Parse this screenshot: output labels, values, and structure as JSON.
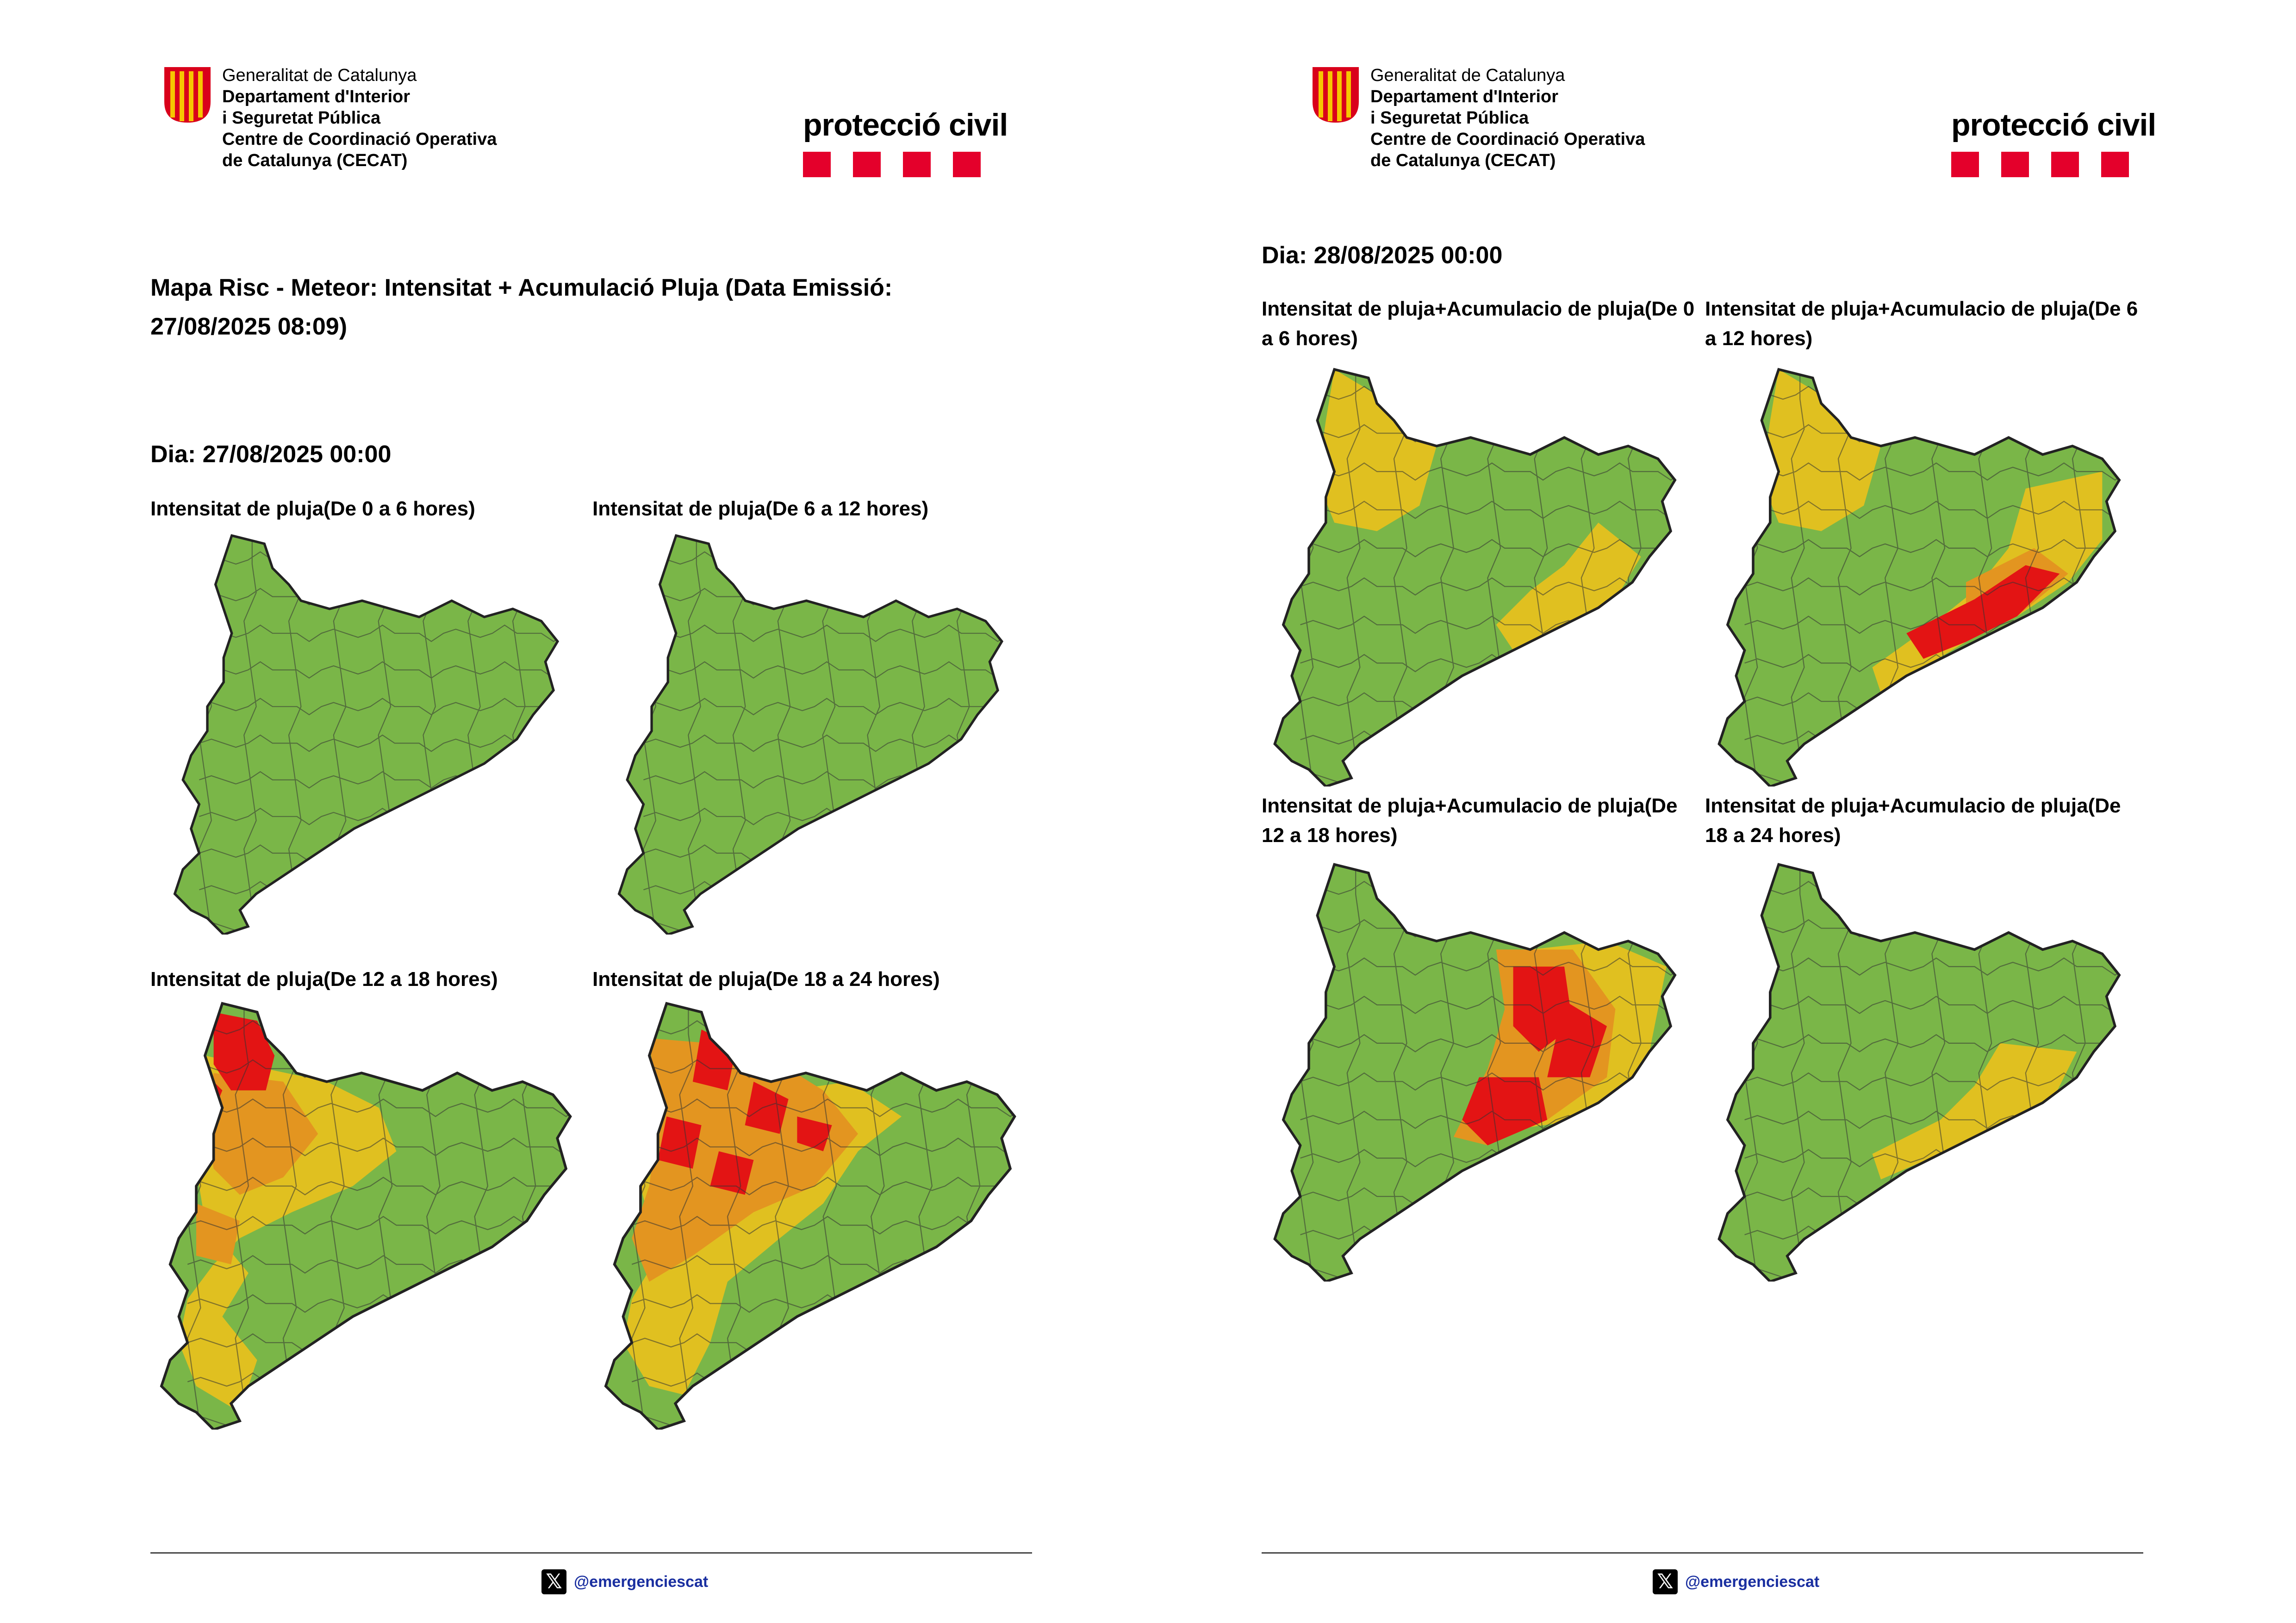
{
  "header": {
    "gencat_lines": [
      "Generalitat de Catalunya",
      "Departament d'Interior",
      "i Seguretat Pública",
      "Centre de Coordinació Operativa",
      "de Catalunya (CECAT)"
    ],
    "protecciocivil": "protecció civil",
    "brand_red": "#e4002b"
  },
  "page1": {
    "title": "Mapa Risc - Meteor: Intensitat + Acumulació Pluja (Data Emissió: 27/08/2025 08:09)",
    "day": "Dia: 27/08/2025 00:00",
    "maps": [
      {
        "caption": "Intensitat de pluja(De 0 a 6 hores)",
        "risk": "none"
      },
      {
        "caption": "Intensitat de pluja(De 6 a 12 hores)",
        "risk": "none"
      },
      {
        "caption": "Intensitat de pluja(De 12 a 18 hores)",
        "risk": "west-high"
      },
      {
        "caption": "Intensitat de pluja(De 18 a 24 hores)",
        "risk": "west-very-high"
      }
    ]
  },
  "page2": {
    "day": "Dia: 28/08/2025 00:00",
    "maps": [
      {
        "caption": "Intensitat de pluja+Acumulacio de pluja(De 0 a 6 hores)",
        "risk": "nw-coast-yellow"
      },
      {
        "caption": "Intensitat de pluja+Acumulacio de pluja(De 6 a 12 hores)",
        "risk": "coast-red"
      },
      {
        "caption": "Intensitat de pluja+Acumulacio de pluja(De 12 a 18 hores)",
        "risk": "central-red"
      },
      {
        "caption": "Intensitat de pluja+Acumulacio de pluja(De 18 a 24 hores)",
        "risk": "coast-yellow"
      }
    ]
  },
  "footer": {
    "handle": "@emergenciescat",
    "x_icon": "x-logo-icon"
  },
  "risk_colors": {
    "none": "#7ab648",
    "low": "#e0c020",
    "medium": "#e39520",
    "high": "#e31414"
  }
}
